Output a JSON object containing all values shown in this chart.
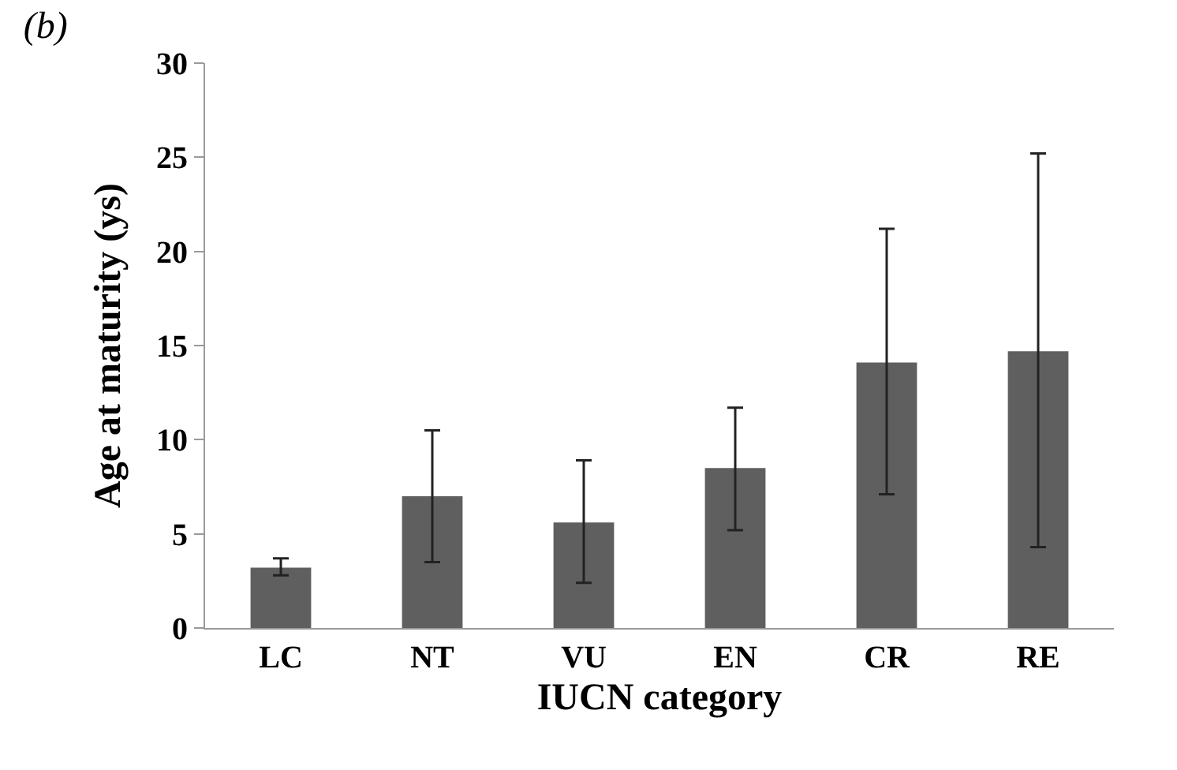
{
  "chart_data": {
    "type": "bar",
    "title": "(b)",
    "xlabel": "IUCN category",
    "ylabel": "Age at maturity (ys)",
    "categories": [
      "LC",
      "NT",
      "VU",
      "EN",
      "CR",
      "RE"
    ],
    "values": [
      3.2,
      7.0,
      5.6,
      8.5,
      14.1,
      14.7
    ],
    "errors": [
      [
        2.8,
        3.7
      ],
      [
        3.5,
        10.5
      ],
      [
        2.4,
        8.9
      ],
      [
        5.2,
        11.7
      ],
      [
        7.1,
        21.2
      ],
      [
        4.3,
        25.2
      ]
    ],
    "color": "#5f5f5f",
    "ylim": [
      0,
      30
    ],
    "yticks": [
      0,
      5,
      10,
      15,
      20,
      25,
      30
    ]
  }
}
